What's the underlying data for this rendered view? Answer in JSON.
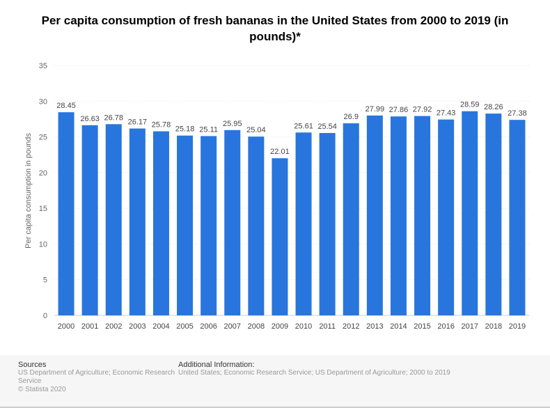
{
  "chart_data": {
    "type": "bar",
    "title": "Per capita consumption of fresh bananas in the United States from 2000 to 2019 (in pounds)*",
    "xlabel": "",
    "ylabel": "Per capita consumption in pounds",
    "ylim": [
      0,
      35
    ],
    "yticks": [
      0,
      5,
      10,
      15,
      20,
      25,
      30,
      35
    ],
    "grid": true,
    "bar_color": "#2876dd",
    "categories": [
      "2000",
      "2001",
      "2002",
      "2003",
      "2004",
      "2005",
      "2006",
      "2007",
      "2008",
      "2009",
      "2010",
      "2011",
      "2012",
      "2013",
      "2014",
      "2015",
      "2016",
      "2017",
      "2018",
      "2019"
    ],
    "values": [
      28.45,
      26.63,
      26.78,
      26.17,
      25.78,
      25.18,
      25.11,
      25.95,
      25.04,
      22.01,
      25.61,
      25.54,
      26.9,
      27.99,
      27.86,
      27.92,
      27.43,
      28.59,
      28.26,
      27.38
    ]
  },
  "footer": {
    "sources_heading": "Sources",
    "sources_text": "US Department of Agriculture; Economic Research Service",
    "copyright": "© Statista 2020",
    "additional_heading": "Additional Information:",
    "additional_text": "United States; Economic Research Service; US Department of Agriculture; 2000 to 2019"
  }
}
